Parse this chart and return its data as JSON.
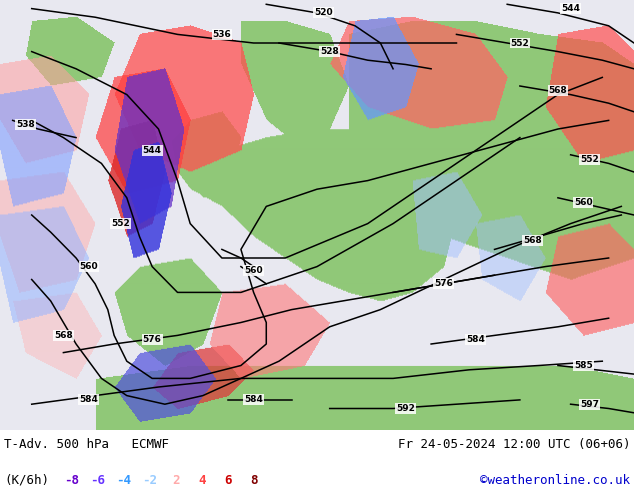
{
  "title_left": "T-Adv. 500 hPa   ECMWF",
  "title_right": "Fr 24-05-2024 12:00 UTC (06+06)",
  "unit_label": "(K/6h)",
  "legend_values": [
    -8,
    -6,
    -4,
    -2,
    2,
    4,
    6,
    8
  ],
  "legend_colors": [
    "#6600cc",
    "#6633ff",
    "#3399ff",
    "#99ccff",
    "#ffaaaa",
    "#ff4444",
    "#cc0000",
    "#800000"
  ],
  "bottom_text": "©weatheronline.co.uk",
  "fig_width": 6.34,
  "fig_height": 4.9,
  "dpi": 100,
  "label_fontsize": 9,
  "title_fontsize": 9,
  "map_bg_land": "#90c878",
  "map_bg_sea": "#e8e8f0",
  "contour_color": "#000000",
  "gray_border": "#aaaaaa",
  "bottom_bg": "#e8e8e8"
}
